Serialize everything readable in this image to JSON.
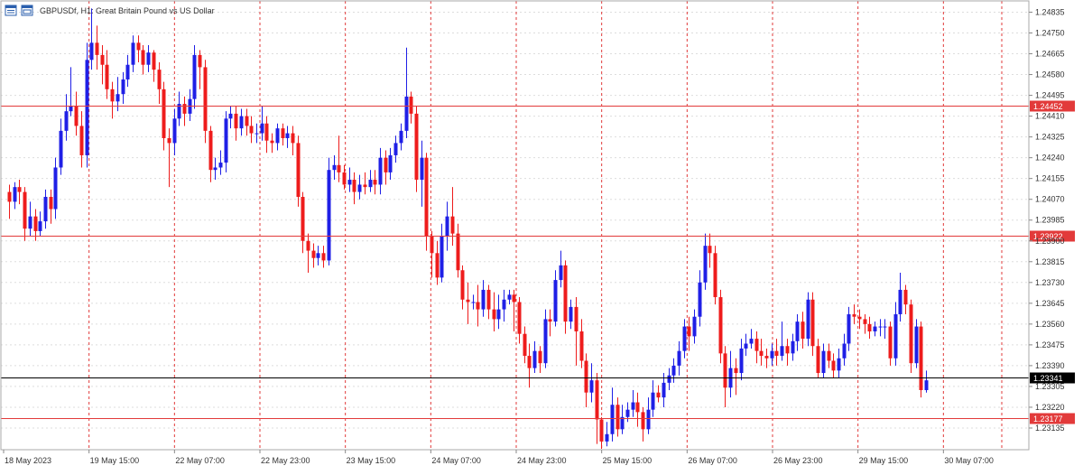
{
  "header": {
    "symbol_title": "GBPUSDf, H1:  Great Britain Pound vs US Dollar"
  },
  "colors": {
    "bull": "#1f1fe6",
    "bear": "#ee1c1c",
    "level_line": "#e23a3a",
    "current_line": "#000000",
    "grid": "#dddddd",
    "separator": "#e23a3a"
  },
  "chart_data": {
    "type": "candlestick",
    "title": "GBPUSDf, H1:  Great Britain Pound vs US Dollar",
    "ylim": [
      1.2305,
      1.2487
    ],
    "y_ticks": [
      "1.24835",
      "1.24750",
      "1.24665",
      "1.24580",
      "1.24495",
      "1.24410",
      "1.24325",
      "1.24240",
      "1.24155",
      "1.24070",
      "1.23985",
      "1.23900",
      "1.23815",
      "1.23730",
      "1.23645",
      "1.23560",
      "1.23475",
      "1.23390",
      "1.23305",
      "1.23220",
      "1.23135"
    ],
    "x_labels": [
      "18 May 2023",
      "19 May 15:00",
      "22 May 07:00",
      "22 May 23:00",
      "23 May 15:00",
      "24 May 07:00",
      "24 May 23:00",
      "25 May 15:00",
      "26 May 07:00",
      "26 May 23:00",
      "29 May 15:00",
      "30 May 07:00"
    ],
    "levels": [
      {
        "value": 1.24452,
        "label": "1.24452"
      },
      {
        "value": 1.23922,
        "label": "1.23922"
      },
      {
        "value": 1.23177,
        "label": "1.23177"
      }
    ],
    "current_price": {
      "value": 1.23341,
      "label": "1.23341"
    },
    "grid": true,
    "candles": [
      [
        1.241,
        1.2406,
        1.2413,
        1.2399
      ],
      [
        1.2406,
        1.2412,
        1.2414,
        1.2403
      ],
      [
        1.2412,
        1.241,
        1.2415,
        1.2405
      ],
      [
        1.241,
        1.2395,
        1.2412,
        1.239
      ],
      [
        1.2395,
        1.24,
        1.2406,
        1.2392
      ],
      [
        1.24,
        1.2394,
        1.2403,
        1.239
      ],
      [
        1.2394,
        1.2398,
        1.2402,
        1.2392
      ],
      [
        1.2398,
        1.2408,
        1.2411,
        1.2395
      ],
      [
        1.2408,
        1.2403,
        1.2411,
        1.2397
      ],
      [
        1.2403,
        1.242,
        1.2424,
        1.2399
      ],
      [
        1.242,
        1.2435,
        1.244,
        1.2417
      ],
      [
        1.2435,
        1.2443,
        1.245,
        1.2431
      ],
      [
        1.2443,
        1.2445,
        1.2461,
        1.2441
      ],
      [
        1.2445,
        1.2437,
        1.2451,
        1.2433
      ],
      [
        1.2437,
        1.2425,
        1.2443,
        1.242
      ],
      [
        1.2425,
        1.2464,
        1.2471,
        1.242
      ],
      [
        1.2464,
        1.2471,
        1.2485,
        1.246
      ],
      [
        1.2471,
        1.2466,
        1.2478,
        1.246
      ],
      [
        1.2466,
        1.2462,
        1.247,
        1.2454
      ],
      [
        1.2462,
        1.2452,
        1.2468,
        1.2448
      ],
      [
        1.2452,
        1.2447,
        1.2455,
        1.244
      ],
      [
        1.2447,
        1.245,
        1.2457,
        1.2443
      ],
      [
        1.245,
        1.2456,
        1.2459,
        1.2446
      ],
      [
        1.2456,
        1.2462,
        1.2466,
        1.2453
      ],
      [
        1.2462,
        1.2471,
        1.2474,
        1.2459
      ],
      [
        1.2471,
        1.2468,
        1.2474,
        1.2463
      ],
      [
        1.2468,
        1.2462,
        1.247,
        1.2458
      ],
      [
        1.2462,
        1.2467,
        1.247,
        1.2459
      ],
      [
        1.2467,
        1.246,
        1.2468,
        1.2455
      ],
      [
        1.246,
        1.2452,
        1.2463,
        1.2446
      ],
      [
        1.2452,
        1.2432,
        1.2455,
        1.2427
      ],
      [
        1.2432,
        1.243,
        1.2436,
        1.2412
      ],
      [
        1.243,
        1.244,
        1.2444,
        1.2425
      ],
      [
        1.244,
        1.2446,
        1.2451,
        1.2437
      ],
      [
        1.2446,
        1.2442,
        1.2449,
        1.2437
      ],
      [
        1.2442,
        1.2448,
        1.2452,
        1.2439
      ],
      [
        1.2448,
        1.2466,
        1.247,
        1.2444
      ],
      [
        1.2466,
        1.2461,
        1.2468,
        1.2452
      ],
      [
        1.2461,
        1.2435,
        1.2464,
        1.243
      ],
      [
        1.2435,
        1.2419,
        1.2437,
        1.2414
      ],
      [
        1.2419,
        1.242,
        1.2424,
        1.2415
      ],
      [
        1.242,
        1.2422,
        1.2427,
        1.2417
      ],
      [
        1.2422,
        1.244,
        1.2443,
        1.2418
      ],
      [
        1.244,
        1.2442,
        1.2445,
        1.2436
      ],
      [
        1.2442,
        1.2436,
        1.2445,
        1.2431
      ],
      [
        1.2436,
        1.2441,
        1.2444,
        1.2433
      ],
      [
        1.2441,
        1.2437,
        1.2444,
        1.2433
      ],
      [
        1.2437,
        1.2434,
        1.2441,
        1.243
      ],
      [
        1.2434,
        1.2434,
        1.2438,
        1.243
      ],
      [
        1.2434,
        1.2438,
        1.2445,
        1.2431
      ],
      [
        1.2438,
        1.2431,
        1.2441,
        1.2426
      ],
      [
        1.2431,
        1.243,
        1.2434,
        1.2426
      ],
      [
        1.243,
        1.2436,
        1.2438,
        1.2427
      ],
      [
        1.2436,
        1.2432,
        1.2438,
        1.2429
      ],
      [
        1.2432,
        1.2434,
        1.2437,
        1.2428
      ],
      [
        1.2434,
        1.243,
        1.2437,
        1.2425
      ],
      [
        1.243,
        1.2408,
        1.2433,
        1.2404
      ],
      [
        1.2408,
        1.239,
        1.241,
        1.2385
      ],
      [
        1.239,
        1.2386,
        1.2393,
        1.2377
      ],
      [
        1.2386,
        1.2383,
        1.2389,
        1.2379
      ],
      [
        1.2383,
        1.2385,
        1.2388,
        1.238
      ],
      [
        1.2385,
        1.2382,
        1.2388,
        1.2379
      ],
      [
        1.2382,
        1.2419,
        1.2424,
        1.238
      ],
      [
        1.2419,
        1.2421,
        1.2425,
        1.2415
      ],
      [
        1.2421,
        1.2418,
        1.2433,
        1.2414
      ],
      [
        1.2418,
        1.2413,
        1.2421,
        1.2411
      ],
      [
        1.2413,
        1.2415,
        1.242,
        1.241
      ],
      [
        1.2415,
        1.241,
        1.2418,
        1.2405
      ],
      [
        1.241,
        1.2413,
        1.2417,
        1.2407
      ],
      [
        1.2413,
        1.2412,
        1.2418,
        1.2409
      ],
      [
        1.2412,
        1.2415,
        1.2419,
        1.241
      ],
      [
        1.2415,
        1.2413,
        1.2419,
        1.2409
      ],
      [
        1.2413,
        1.2424,
        1.2428,
        1.2409
      ],
      [
        1.2424,
        1.2418,
        1.2427,
        1.2413
      ],
      [
        1.2418,
        1.2425,
        1.2428,
        1.2415
      ],
      [
        1.2425,
        1.243,
        1.2433,
        1.2422
      ],
      [
        1.243,
        1.2435,
        1.2438,
        1.2427
      ],
      [
        1.2435,
        1.2449,
        1.2469,
        1.2432
      ],
      [
        1.2449,
        1.2442,
        1.2451,
        1.2438
      ],
      [
        1.2442,
        1.2415,
        1.2445,
        1.241
      ],
      [
        1.2415,
        1.2424,
        1.2431,
        1.2404
      ],
      [
        1.2424,
        1.2392,
        1.2426,
        1.2386
      ],
      [
        1.2392,
        1.2385,
        1.2394,
        1.2375
      ],
      [
        1.2385,
        1.2375,
        1.239,
        1.2372
      ],
      [
        1.2375,
        1.2392,
        1.2397,
        1.2373
      ],
      [
        1.2392,
        1.24,
        1.2406,
        1.2386
      ],
      [
        1.24,
        1.2393,
        1.2412,
        1.2388
      ],
      [
        1.2393,
        1.2378,
        1.2397,
        1.2375
      ],
      [
        1.2378,
        1.2366,
        1.238,
        1.2362
      ],
      [
        1.2366,
        1.2365,
        1.2373,
        1.2356
      ],
      [
        1.2365,
        1.2365,
        1.2368,
        1.2362
      ],
      [
        1.2365,
        1.2362,
        1.2372,
        1.2355
      ],
      [
        1.2362,
        1.237,
        1.2374,
        1.2359
      ],
      [
        1.237,
        1.2362,
        1.2372,
        1.2358
      ],
      [
        1.2362,
        1.2358,
        1.2369,
        1.2353
      ],
      [
        1.2358,
        1.2362,
        1.2368,
        1.2354
      ],
      [
        1.2362,
        1.2366,
        1.237,
        1.2357
      ],
      [
        1.2366,
        1.2368,
        1.237,
        1.2364
      ],
      [
        1.2368,
        1.2365,
        1.237,
        1.2353
      ],
      [
        1.2365,
        1.2352,
        1.2367,
        1.2348
      ],
      [
        1.2352,
        1.2343,
        1.2355,
        1.234
      ],
      [
        1.2343,
        1.2338,
        1.2348,
        1.233
      ],
      [
        1.2338,
        1.2345,
        1.2349,
        1.2336
      ],
      [
        1.2345,
        1.234,
        1.2347,
        1.2336
      ],
      [
        1.234,
        1.2358,
        1.2362,
        1.2338
      ],
      [
        1.2358,
        1.2357,
        1.2362,
        1.2351
      ],
      [
        1.2357,
        1.2374,
        1.2378,
        1.2355
      ],
      [
        1.2374,
        1.238,
        1.2386,
        1.2371
      ],
      [
        1.238,
        1.2357,
        1.2382,
        1.2352
      ],
      [
        1.2357,
        1.2363,
        1.2366,
        1.2354
      ],
      [
        1.2363,
        1.2353,
        1.2367,
        1.2339
      ],
      [
        1.2353,
        1.2341,
        1.2358,
        1.2338
      ],
      [
        1.2341,
        1.2328,
        1.2344,
        1.2322
      ],
      [
        1.2328,
        1.2333,
        1.234,
        1.2324
      ],
      [
        1.2333,
        1.2317,
        1.2336,
        1.2307
      ],
      [
        1.2317,
        1.2308,
        1.2318,
        1.2305
      ],
      [
        1.2308,
        1.2311,
        1.2316,
        1.2306
      ],
      [
        1.2311,
        1.2323,
        1.233,
        1.2308
      ],
      [
        1.2323,
        1.2313,
        1.2326,
        1.231
      ],
      [
        1.2313,
        1.2318,
        1.2323,
        1.2311
      ],
      [
        1.2318,
        1.2321,
        1.2324,
        1.2316
      ],
      [
        1.2321,
        1.2324,
        1.2329,
        1.2318
      ],
      [
        1.2324,
        1.232,
        1.2328,
        1.2314
      ],
      [
        1.232,
        1.2313,
        1.2322,
        1.2308
      ],
      [
        1.2313,
        1.2321,
        1.2326,
        1.2311
      ],
      [
        1.2321,
        1.2328,
        1.2333,
        1.2318
      ],
      [
        1.2328,
        1.2326,
        1.2331,
        1.2324
      ],
      [
        1.2326,
        1.2332,
        1.2336,
        1.2322
      ],
      [
        1.2332,
        1.2335,
        1.2338,
        1.2329
      ],
      [
        1.2335,
        1.2339,
        1.2342,
        1.2332
      ],
      [
        1.2339,
        1.2345,
        1.2349,
        1.2335
      ],
      [
        1.2345,
        1.2355,
        1.2358,
        1.2342
      ],
      [
        1.2355,
        1.2351,
        1.2359,
        1.2345
      ],
      [
        1.2351,
        1.2359,
        1.2362,
        1.2348
      ],
      [
        1.2359,
        1.2373,
        1.2378,
        1.2355
      ],
      [
        1.2373,
        1.2388,
        1.2393,
        1.237
      ],
      [
        1.2388,
        1.2385,
        1.2393,
        1.2379
      ],
      [
        1.2385,
        1.2367,
        1.2388,
        1.2364
      ],
      [
        1.2367,
        1.2344,
        1.237,
        1.234
      ],
      [
        1.2344,
        1.233,
        1.2347,
        1.2322
      ],
      [
        1.233,
        1.2338,
        1.2345,
        1.2326
      ],
      [
        1.2338,
        1.2336,
        1.2342,
        1.2327
      ],
      [
        1.2336,
        1.2346,
        1.235,
        1.2333
      ],
      [
        1.2346,
        1.2348,
        1.2352,
        1.2343
      ],
      [
        1.2348,
        1.235,
        1.2354,
        1.2346
      ],
      [
        1.235,
        1.2345,
        1.2353,
        1.234
      ],
      [
        1.2345,
        1.2343,
        1.235,
        1.2339
      ],
      [
        1.2343,
        1.2342,
        1.2346,
        1.2338
      ],
      [
        1.2342,
        1.2345,
        1.2348,
        1.2339
      ],
      [
        1.2345,
        1.2343,
        1.235,
        1.2339
      ],
      [
        1.2343,
        1.2347,
        1.2357,
        1.2341
      ],
      [
        1.2347,
        1.2344,
        1.235,
        1.2339
      ],
      [
        1.2344,
        1.2349,
        1.2352,
        1.2341
      ],
      [
        1.2349,
        1.2357,
        1.236,
        1.2345
      ],
      [
        1.2357,
        1.235,
        1.2361,
        1.2346
      ],
      [
        1.235,
        1.2366,
        1.2369,
        1.2347
      ],
      [
        1.2366,
        1.2347,
        1.2369,
        1.2343
      ],
      [
        1.2347,
        1.2336,
        1.235,
        1.2334
      ],
      [
        1.2336,
        1.2345,
        1.2348,
        1.2334
      ],
      [
        1.2345,
        1.2341,
        1.2348,
        1.2338
      ],
      [
        1.2341,
        1.2337,
        1.2344,
        1.2334
      ],
      [
        1.2337,
        1.2342,
        1.2346,
        1.2334
      ],
      [
        1.2342,
        1.2348,
        1.2352,
        1.2339
      ],
      [
        1.2348,
        1.236,
        1.2363,
        1.2345
      ],
      [
        1.236,
        1.2359,
        1.2364,
        1.2356
      ],
      [
        1.2359,
        1.2358,
        1.2362,
        1.2354
      ],
      [
        1.2358,
        1.2356,
        1.236,
        1.2352
      ],
      [
        1.2356,
        1.2353,
        1.2359,
        1.235
      ],
      [
        1.2353,
        1.2355,
        1.2357,
        1.2351
      ],
      [
        1.2355,
        1.2355,
        1.2358,
        1.2351
      ],
      [
        1.2355,
        1.2355,
        1.2358,
        1.235
      ],
      [
        1.2355,
        1.2342,
        1.2357,
        1.2339
      ],
      [
        1.2342,
        1.236,
        1.2365,
        1.2339
      ],
      [
        1.236,
        1.237,
        1.2377,
        1.2357
      ],
      [
        1.237,
        1.2364,
        1.2372,
        1.236
      ],
      [
        1.2364,
        1.234,
        1.2366,
        1.2336
      ],
      [
        1.234,
        1.2355,
        1.2358,
        1.2338
      ],
      [
        1.2355,
        1.2329,
        1.2357,
        1.2326
      ],
      [
        1.2329,
        1.2333,
        1.2337,
        1.2328
      ]
    ]
  }
}
